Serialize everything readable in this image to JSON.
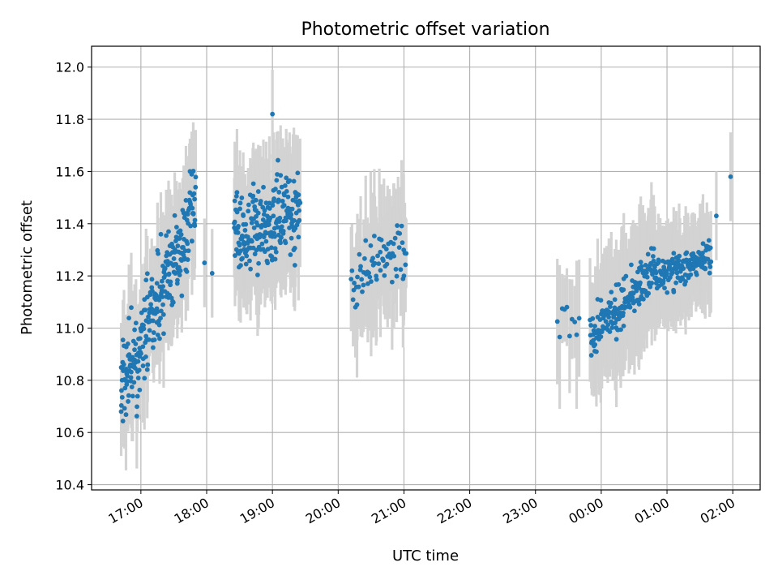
{
  "chart_data": {
    "type": "scatter",
    "title": "Photometric offset variation",
    "xlabel": "UTC time",
    "ylabel": "Photometric offset",
    "xlim": [
      "16:15",
      "02:25"
    ],
    "ylim": [
      10.38,
      12.08
    ],
    "x_ticks": [
      "17:00",
      "18:00",
      "19:00",
      "20:00",
      "21:00",
      "22:00",
      "23:00",
      "00:00",
      "01:00",
      "02:00"
    ],
    "y_ticks": [
      "10.4",
      "10.6",
      "10.8",
      "11.0",
      "11.2",
      "11.4",
      "11.6",
      "11.8",
      "12.0"
    ],
    "grid": true,
    "point_color": "#1f77b4",
    "errorbar_color": "#d3d3d3",
    "groups": [
      {
        "start": "16:42",
        "end": "17:50",
        "n": 260,
        "y_start": 10.75,
        "y_end": 11.45,
        "spread": 0.14,
        "err": 0.15
      },
      {
        "start": "18:25",
        "end": "19:25",
        "n": 230,
        "y_start": 11.35,
        "y_end": 11.45,
        "spread": 0.13,
        "err": 0.18
      },
      {
        "start": "20:12",
        "end": "21:02",
        "n": 70,
        "y_start": 11.2,
        "y_end": 11.3,
        "spread": 0.09,
        "err": 0.2
      },
      {
        "start": "23:20",
        "end": "23:40",
        "n": 10,
        "y_start": 11.05,
        "y_end": 11.02,
        "spread": 0.05,
        "err": 0.2
      },
      {
        "start": "23:50",
        "end": "00:50",
        "n": 190,
        "y_start": 10.98,
        "y_end": 11.22,
        "spread": 0.07,
        "err": 0.18
      },
      {
        "start": "00:50",
        "end": "01:40",
        "n": 150,
        "y_start": 11.2,
        "y_end": 11.27,
        "spread": 0.05,
        "err": 0.14
      }
    ],
    "isolated_points": [
      {
        "x": "16:42",
        "y": 10.68
      },
      {
        "x": "16:43",
        "y": 10.85
      },
      {
        "x": "17:58",
        "y": 11.25
      },
      {
        "x": "18:05",
        "y": 11.21
      },
      {
        "x": "19:00",
        "y": 11.82
      },
      {
        "x": "21:00",
        "y": 11.2
      },
      {
        "x": "01:45",
        "y": 11.43
      },
      {
        "x": "01:58",
        "y": 11.58
      }
    ]
  }
}
